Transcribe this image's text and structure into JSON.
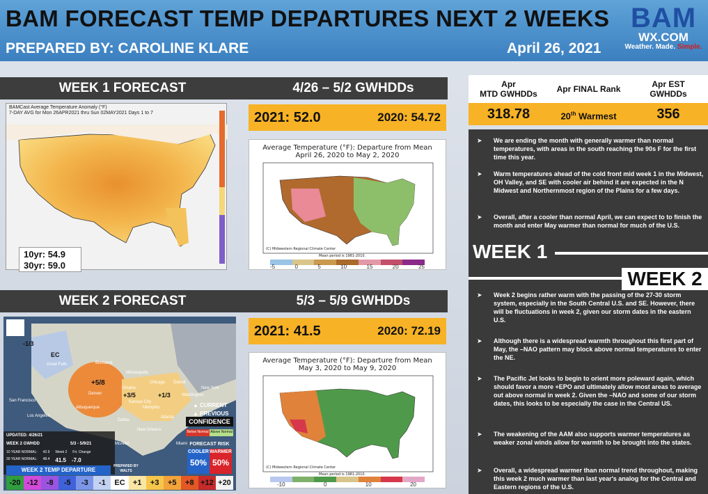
{
  "header": {
    "title": "BAM FORECAST TEMP DEPARTURES NEXT 2 WEEKS",
    "subtitle": "PREPARED BY: CAROLINE KLARE",
    "date": "April 26, 2021"
  },
  "logo": {
    "bam": "BAM",
    "wx": "WX.COM",
    "tagline_1": "Weather. Made. ",
    "tagline_2": "Simple."
  },
  "week1": {
    "bar_title": "WEEK 1 FORECAST",
    "gwhdd_title": "4/26 – 5/2 GWHDDs",
    "year_2021": "2021: 52.0",
    "year_2020": "2020: 54.72",
    "map_title_1": "BAMCast Average Temperature Anomaly (°F)",
    "map_title_2": "7-DAY AVG for Mon 26APR2021 thru Sun 02MAY2021 Days 1 to 7",
    "normal_10yr": "10yr: 54.9",
    "normal_30yr": "30yr: 59.0",
    "analog_title_1": "Average Temperature (°F): Departure from Mean",
    "analog_title_2": "April 26, 2020 to May 2, 2020",
    "credit": "(C) Midwestern Regional Climate Center",
    "mean_period": "Mean period is 1981-2010.",
    "scale": [
      "-5",
      "0",
      "5",
      "10",
      "15",
      "20",
      "25"
    ]
  },
  "week2": {
    "bar_title": "WEEK 2 FORECAST",
    "gwhdd_title": "5/3 – 5/9 GWHDDs",
    "year_2021": "2021: 41.5",
    "year_2020": "2020: 72.19",
    "analog_title_1": "Average Temperature (°F): Departure from Mean",
    "analog_title_2": "May 3, 2020 to May 9, 2020",
    "credit": "(C) Midwestern Regional Climate Center",
    "mean_period": "Mean period is 1981-2010.",
    "scale": [
      "-10",
      "0",
      "10",
      "20"
    ],
    "map": {
      "updated": "UPDATED: 4/26/21",
      "gwhdd_label": "WEEK 2 GWHDD",
      "gwhdd_dates": "5/3 - 5/9/21",
      "row1_label": "10 YEAR NORMAL:",
      "row1_v1": "42.9",
      "row1_v2": "Week 2",
      "row1_v3": "Fri. Change",
      "row2_label": "30 YEAR NORMAL:",
      "row2_v1": "48.4",
      "row2_v2": "41.5",
      "row2_v3": "-7.0",
      "current": "CURRENT",
      "previous": "PREVIOUS",
      "confidence": "CONFIDENCE",
      "conf_below": "Below Normal",
      "conf_above": "Above Normal",
      "forecast_risk": "FORECAST RISK",
      "cooler": "COOLER",
      "warmer": "WARMER",
      "cooler_pct": "50%",
      "warmer_pct": "50%",
      "prepared_by": "PREPARED BY",
      "prepared_name": "WALTS",
      "departure_title": "WEEK 2 TEMP DEPARTURE",
      "contour_1": "-1/3",
      "contour_2": "EC",
      "contour_3": "+5/8",
      "contour_4": "+3/5",
      "contour_5": "+1/3",
      "cities": [
        "Great Falls",
        "Bismarck",
        "Minneapolis",
        "Chicago",
        "Detroit",
        "New York",
        "Omaha",
        "Denver",
        "Kansas City",
        "Washington",
        "San Francisco",
        "Los Angeles",
        "Albuquerque",
        "Dallas",
        "Atlanta",
        "Memphis",
        "New Orleans",
        "McAllen",
        "Miami"
      ],
      "legend": [
        "-20",
        "-12",
        "-8",
        "-5",
        "-3",
        "-1",
        "EC",
        "+1",
        "+3",
        "+5",
        "+8",
        "+12",
        "+20"
      ]
    }
  },
  "right": {
    "hdr1": "Apr\nMTD GWHDDs",
    "hdr2": "Apr FINAL Rank",
    "hdr3": "Apr EST\nGWHDDs",
    "val1": "318.78",
    "val2_num": "20",
    "val2_sup": "th",
    "val2_txt": " Warmest",
    "val3": "356",
    "week1_label": "WEEK 1",
    "week2_label": "WEEK 2",
    "bullets_w1": [
      "We are ending the month with generally warmer than normal temperatures, with areas in the south reaching  the 90s F for the first time this year.",
      "Warm temperatures ahead of the cold front mid week 1 in the Midwest, OH Valley, and SE with cooler air behind it are expected in the N Midwest and Northernmost region of the Plains for a few days.",
      "Overall, after a cooler than normal April, we can expect to to finish the month and enter May warmer than normal for much of the U.S."
    ],
    "bullets_w2": [
      "Week 2 begins rather warm with the passing of the 27-30 storm system, especially in the South Central U.S. and SE. However, there will be fluctuations in week 2, given our storm dates in the eastern U.S.",
      "Although there is a widespread warmth throughout this first part of May, the –NAO pattern may block above normal temperatures to enter the NE.",
      "The Pacific Jet looks to begin to orient more poleward again, which should favor a more +EPO and ultimately allow most areas to average out above normal in week 2. Given the –NAO and some of our storm dates, this looks to be especially the case in the Central US.",
      "The weakening of the AAM also supports warmer temperatures as weaker zonal winds allow for warmth to be brought into the states.",
      "Overall, a widespread warmer than normal trend throughout, making this week 2 much warmer than last year's analog for the Central and Eastern regions of the U.S."
    ]
  },
  "colors": {
    "header_blue": "#3b7fc0",
    "bar_dark": "#3d3d3d",
    "accent_yellow": "#f7b225",
    "right_dark": "#3a3a3a"
  }
}
